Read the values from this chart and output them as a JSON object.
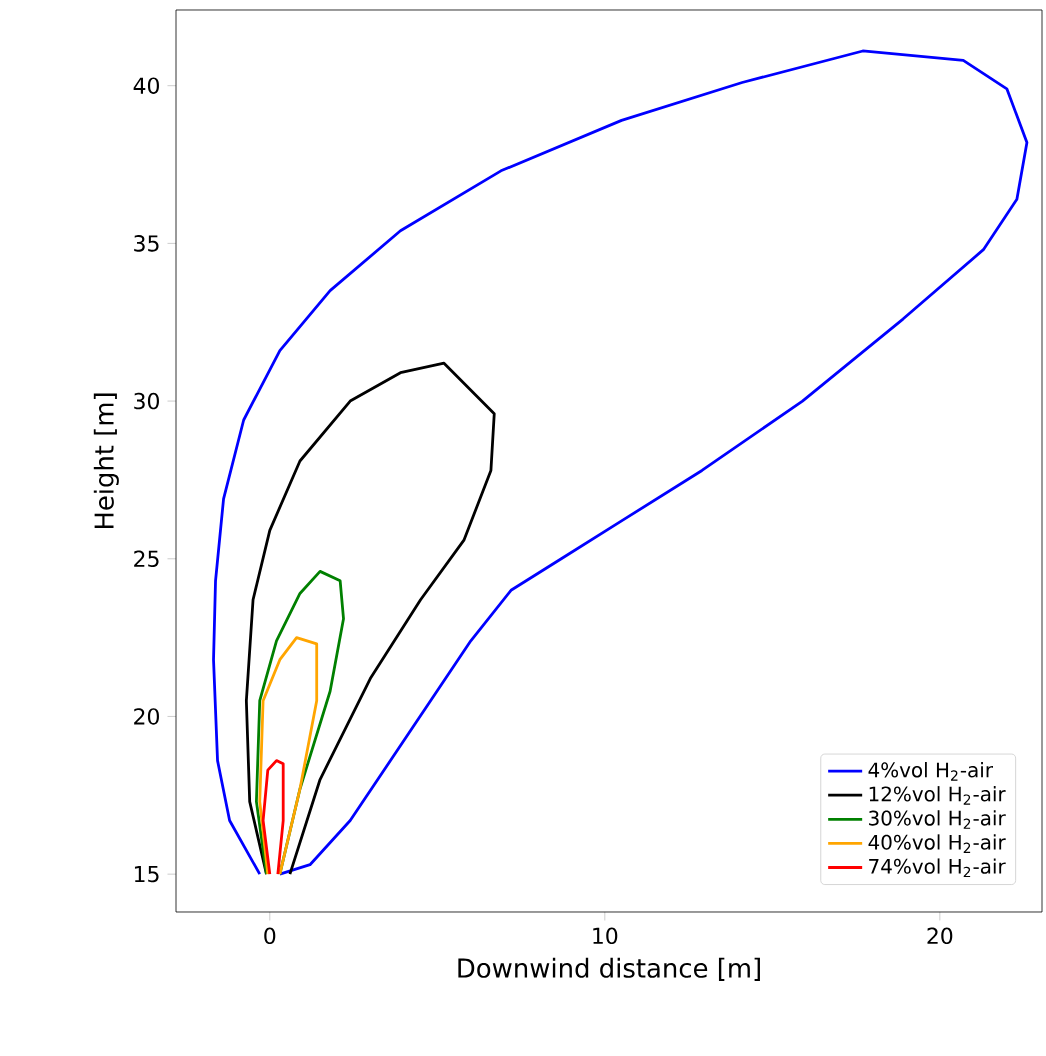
{
  "chart_data": {
    "type": "line",
    "xlabel": "Downwind distance [m]",
    "ylabel": "Height [m]",
    "xlim": [
      -2.8,
      23.05
    ],
    "ylim": [
      13.8,
      42.4
    ],
    "xticks": [
      0,
      10,
      20
    ],
    "yticks": [
      15,
      20,
      25,
      30,
      35,
      40
    ],
    "legend": "bottom right",
    "marker": "none",
    "line_style": "solid",
    "grid": false,
    "series": [
      {
        "name": "4%vol H$_{2}$-air",
        "color": "#0000ff",
        "x": [
          -0.3,
          -1.2,
          -1.56,
          -1.68,
          -1.62,
          -1.38,
          -0.78,
          0.3,
          1.8,
          3.9,
          6.9,
          10.5,
          14.1,
          17.7,
          20.7,
          22.0,
          22.6,
          22.3,
          21.3,
          18.9,
          15.9,
          12.9,
          10.5,
          8.7,
          7.2,
          6.0,
          4.8,
          3.6,
          2.4,
          1.2,
          0.3
        ],
        "values": [
          15.0,
          16.7,
          18.6,
          21.8,
          24.3,
          26.9,
          29.4,
          31.6,
          33.5,
          35.4,
          37.3,
          38.9,
          40.1,
          41.1,
          40.8,
          39.9,
          38.2,
          36.4,
          34.8,
          32.6,
          30.0,
          27.8,
          26.2,
          25.0,
          24.0,
          22.4,
          20.5,
          18.6,
          16.7,
          15.3,
          15.0
        ]
      },
      {
        "name": "12%vol H$_{2}$-air",
        "color": "#000000",
        "x": [
          -0.1,
          -0.6,
          -0.7,
          -0.5,
          0.0,
          0.9,
          2.4,
          3.9,
          5.2,
          6.7,
          6.6,
          5.8,
          4.5,
          3.0,
          1.5,
          0.6
        ],
        "values": [
          15.0,
          17.3,
          20.5,
          23.7,
          25.9,
          28.1,
          30.0,
          30.9,
          31.2,
          29.6,
          27.8,
          25.6,
          23.7,
          21.2,
          18.0,
          15.0
        ]
      },
      {
        "name": "30%vol H$_{2}$-air",
        "color": "#008000",
        "x": [
          -0.1,
          -0.4,
          -0.3,
          0.2,
          0.9,
          1.5,
          2.1,
          2.2,
          1.8,
          0.9,
          0.3
        ],
        "values": [
          15.0,
          17.3,
          20.5,
          22.4,
          23.9,
          24.6,
          24.3,
          23.1,
          20.8,
          17.7,
          15.0
        ]
      },
      {
        "name": "40%vol H$_{2}$-air",
        "color": "#ffa500",
        "x": [
          -0.06,
          -0.3,
          -0.2,
          0.3,
          0.8,
          1.4,
          1.4,
          0.9,
          0.3
        ],
        "values": [
          15.0,
          17.3,
          20.5,
          21.8,
          22.5,
          22.3,
          20.5,
          17.7,
          15.0
        ]
      },
      {
        "name": "74%vol H$_{2}$-air",
        "color": "#ff0000",
        "x": [
          0.0,
          -0.2,
          -0.06,
          0.2,
          0.4,
          0.4,
          0.24
        ],
        "values": [
          15.0,
          16.7,
          18.3,
          18.6,
          18.5,
          16.7,
          15.0
        ]
      }
    ]
  }
}
